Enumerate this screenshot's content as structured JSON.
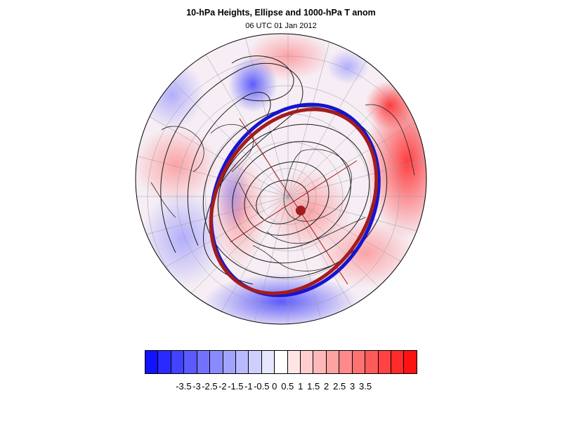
{
  "title": "10-hPa Heights, Ellipse and 1000-hPa T anom",
  "subtitle": "06 UTC 01 Jan 2012",
  "map": {
    "projection": "north-polar-orthographic",
    "field": "1000-hPa T anom",
    "contours": "10-hPa Heights",
    "ellipse_colors": {
      "fitted": "#a31c1c",
      "reference": "#1414d2"
    },
    "center_marker_color": "#a31c1c"
  },
  "colorbar": {
    "colors": [
      "#1212ff",
      "#2a2aff",
      "#4242ff",
      "#5a5aff",
      "#7272ff",
      "#8a8aff",
      "#a2a2ff",
      "#b9b9ff",
      "#cfcfff",
      "#e6e6ff",
      "#ffffff",
      "#ffe6e6",
      "#ffcfcf",
      "#ffb9b9",
      "#ffa2a2",
      "#ff8a8a",
      "#ff7272",
      "#ff5a5a",
      "#ff4242",
      "#ff2a2a",
      "#ff1212"
    ],
    "labels": [
      "-3.5",
      "-3",
      "-2.5",
      "-2",
      "-1.5",
      "-1",
      "-0.5",
      "0",
      "0.5",
      "1",
      "1.5",
      "2",
      "2.5",
      "3",
      "3.5"
    ]
  }
}
